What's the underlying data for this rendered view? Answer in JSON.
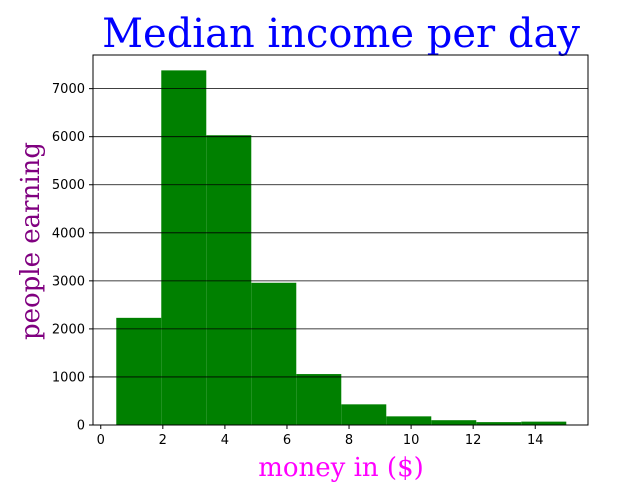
{
  "chart_data": {
    "type": "bar",
    "title": "Median income per day",
    "xlabel": "money in ($)",
    "ylabel": "people earning",
    "xlim": [
      -0.25,
      15.7
    ],
    "ylim": [
      0,
      7700
    ],
    "xticks": [
      0,
      2,
      4,
      6,
      8,
      10,
      12,
      14
    ],
    "yticks": [
      0,
      1000,
      2000,
      3000,
      4000,
      5000,
      6000,
      7000
    ],
    "grid": "horizontal",
    "bins": [
      {
        "x0": 0.5,
        "x1": 1.95,
        "value": 2230
      },
      {
        "x0": 1.95,
        "x1": 3.4,
        "value": 7380
      },
      {
        "x0": 3.4,
        "x1": 4.85,
        "value": 6030
      },
      {
        "x0": 4.85,
        "x1": 6.3,
        "value": 2960
      },
      {
        "x0": 6.3,
        "x1": 7.75,
        "value": 1060
      },
      {
        "x0": 7.75,
        "x1": 9.2,
        "value": 430
      },
      {
        "x0": 9.2,
        "x1": 10.65,
        "value": 180
      },
      {
        "x0": 10.65,
        "x1": 12.1,
        "value": 100
      },
      {
        "x0": 12.1,
        "x1": 13.55,
        "value": 60
      },
      {
        "x0": 13.55,
        "x1": 15.0,
        "value": 70
      }
    ],
    "colors": {
      "bar": "#008000",
      "title": "#0000ff",
      "xlabel": "#ff00ff",
      "ylabel": "#800080"
    }
  }
}
